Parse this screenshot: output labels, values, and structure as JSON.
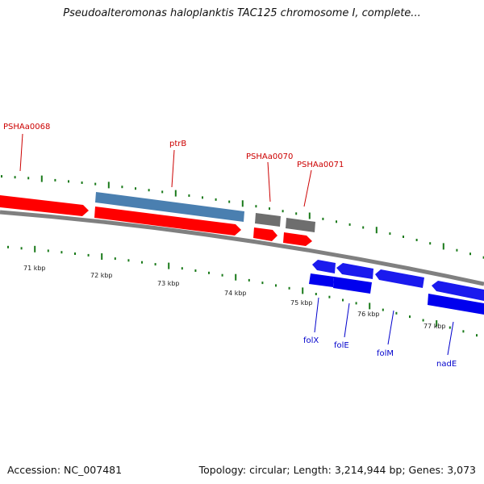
{
  "title": "Pseudoalteromonas haloplanktis TAC125 chromosome I, complete...",
  "footer": {
    "accession": "Accession: NC_007481",
    "summary": "Topology: circular; Length: 3,214,944 bp; Genes: 3,073"
  },
  "colors": {
    "forward_cds": "#ff0000",
    "forward_gene": "#4a7fb0",
    "forward_other": "#6e6e6e",
    "reverse_cds": "#0000ee",
    "backbone": "#808080",
    "ticks": "#1a7a1a",
    "label_red": "#cc0000",
    "label_blue": "#0000cc"
  },
  "kbp_labels": [
    "71 kbp",
    "72 kbp",
    "73 kbp",
    "74 kbp",
    "75 kbp",
    "76 kbp",
    "77 kbp"
  ],
  "gene_labels_top": [
    "PSHAa0068",
    "ptrB",
    "PSHAa0070",
    "PSHAa0071"
  ],
  "gene_labels_bottom": [
    "folX",
    "folE",
    "folM",
    "nadE"
  ]
}
